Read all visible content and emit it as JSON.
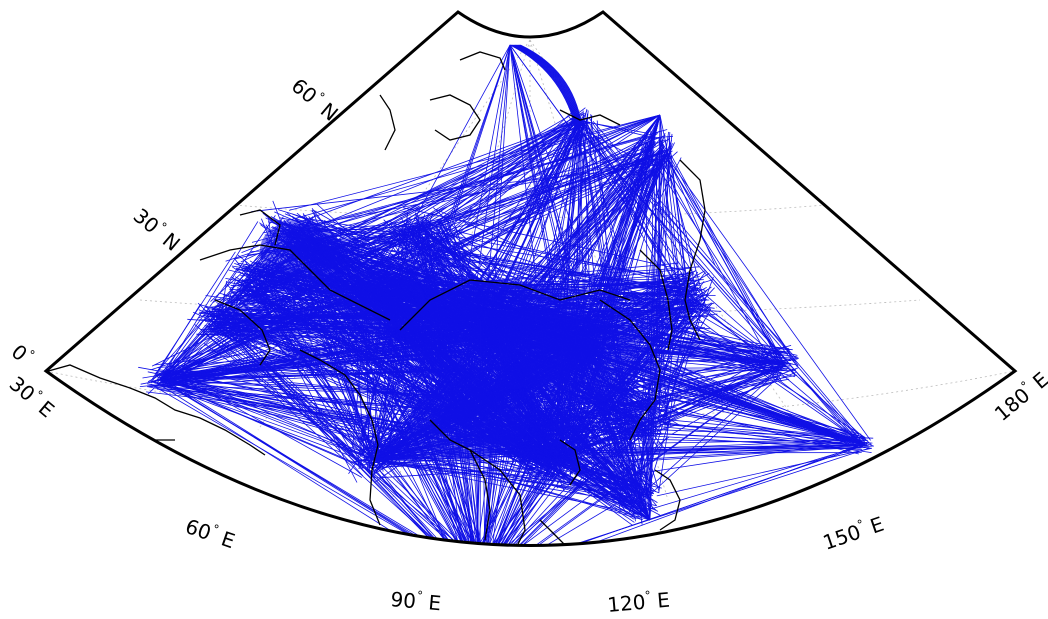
{
  "map": {
    "projection": "conic",
    "frame_color": "#000000",
    "route_color": "#1010e6",
    "coastline_color": "#000000",
    "graticule_color": "#bbbbbb",
    "longitude_range": [
      30,
      180
    ],
    "latitude_range": [
      0,
      90
    ],
    "latitude_labels": [
      {
        "value": "60",
        "degree": "°",
        "hemisphere": "N"
      },
      {
        "value": "30",
        "degree": "°",
        "hemisphere": "N"
      },
      {
        "value": "0",
        "degree": "°",
        "hemisphere": ""
      }
    ],
    "longitude_labels": [
      {
        "value": "30",
        "degree": "°",
        "hemisphere": "E"
      },
      {
        "value": "60",
        "degree": "°",
        "hemisphere": "E"
      },
      {
        "value": "90",
        "degree": "°",
        "hemisphere": "E"
      },
      {
        "value": "120",
        "degree": "°",
        "hemisphere": "E"
      },
      {
        "value": "150",
        "degree": "°",
        "hemisphere": "E"
      },
      {
        "value": "180",
        "degree": "°",
        "hemisphere": "E"
      }
    ]
  }
}
